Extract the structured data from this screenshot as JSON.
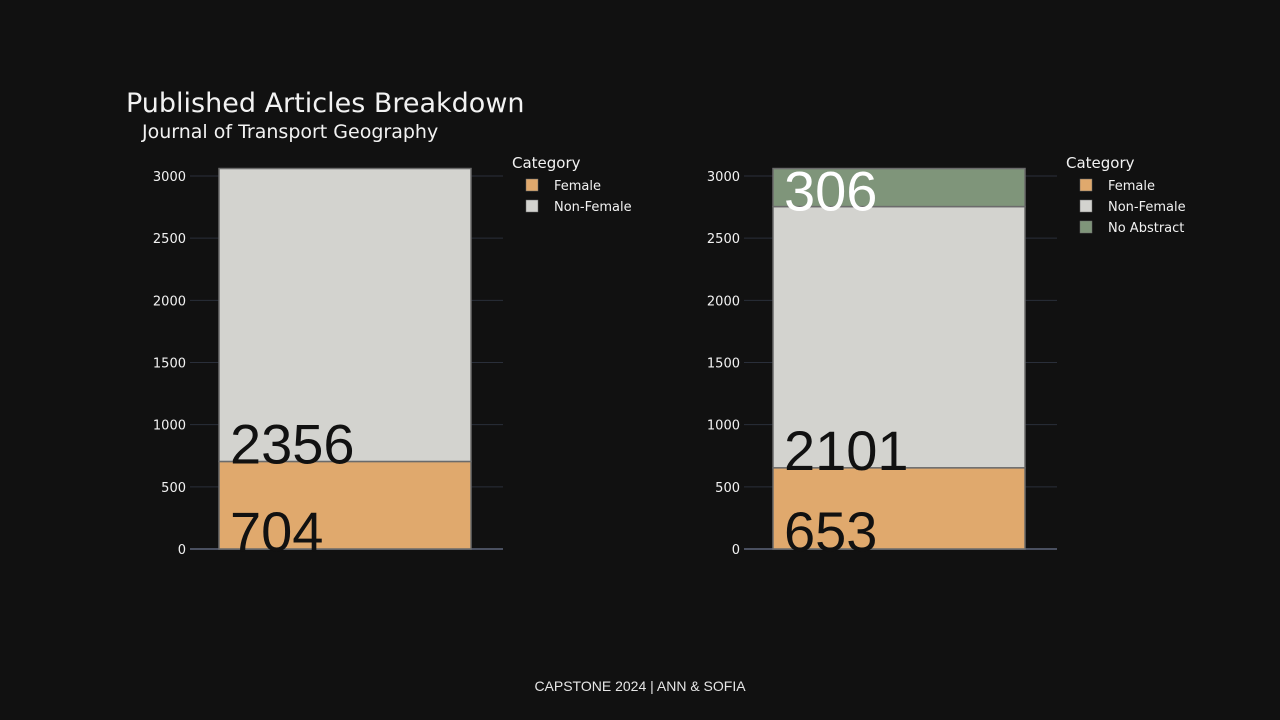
{
  "slide": {
    "title": "Published Articles Breakdown",
    "subtitle": "Journal of Transport Geography",
    "footer": "CAPSTONE 2024 | ANN & SOFIA"
  },
  "colors": {
    "background": "#111111",
    "grid": "#2a2f3a",
    "Female": "#e0a96d",
    "Non-Female": "#d3d3cf",
    "No Abstract": "#7f957a"
  },
  "chart_data": [
    {
      "type": "bar",
      "stacked": true,
      "title": "",
      "xlabel": "",
      "ylabel": "",
      "ylim": [
        0,
        3060
      ],
      "yticks": [
        0,
        500,
        1000,
        1500,
        2000,
        2500,
        3000
      ],
      "grid": true,
      "legend_title": "Category",
      "legend_position": "top-right",
      "series": [
        {
          "name": "Female",
          "values": [
            704
          ],
          "label": "704",
          "label_color": "#111111"
        },
        {
          "name": "Non-Female",
          "values": [
            2356
          ],
          "label": "2356",
          "label_color": "#111111"
        }
      ]
    },
    {
      "type": "bar",
      "stacked": true,
      "title": "",
      "xlabel": "",
      "ylabel": "",
      "ylim": [
        0,
        3060
      ],
      "yticks": [
        0,
        500,
        1000,
        1500,
        2000,
        2500,
        3000
      ],
      "grid": true,
      "legend_title": "Category",
      "legend_position": "top-right",
      "series": [
        {
          "name": "Female",
          "values": [
            653
          ],
          "label": "653",
          "label_color": "#111111"
        },
        {
          "name": "Non-Female",
          "values": [
            2101
          ],
          "label": "2101",
          "label_color": "#111111"
        },
        {
          "name": "No Abstract",
          "values": [
            306
          ],
          "label": "306",
          "label_color": "#ffffff"
        }
      ]
    }
  ]
}
